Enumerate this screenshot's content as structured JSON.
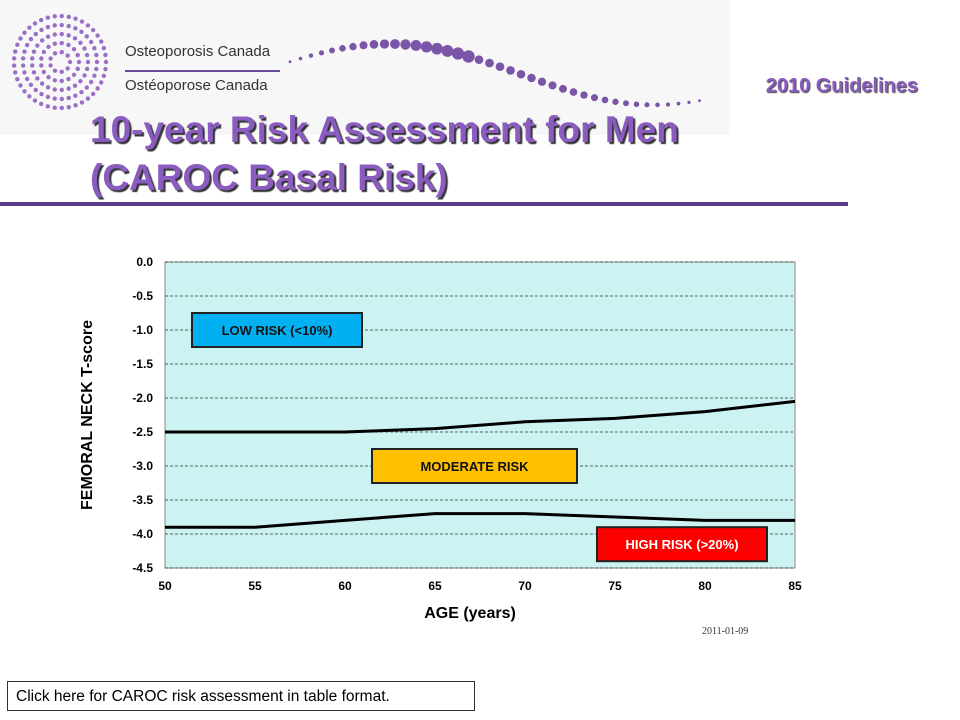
{
  "header": {
    "org_name_en": "Osteoporosis Canada",
    "org_name_fr": "Ostéoporose Canada",
    "guidelines": "2010 Guidelines",
    "title_line1": "10-year Risk Assessment for Men",
    "title_line2": "(CAROC Basal Risk)"
  },
  "link": {
    "label": "Click here for CAROC risk assessment in table format."
  },
  "chart_data": {
    "type": "line",
    "xlabel": "AGE (years)",
    "ylabel": "FEMORAL NECK T-score",
    "x": [
      50,
      55,
      60,
      65,
      70,
      75,
      80,
      85
    ],
    "xlim": [
      50,
      85
    ],
    "ylim": [
      -4.5,
      0.0
    ],
    "x_ticks": [
      "50",
      "55",
      "60",
      "65",
      "70",
      "75",
      "80",
      "85"
    ],
    "y_ticks": [
      "0.0",
      "-0.5",
      "-1.0",
      "-1.5",
      "-2.0",
      "-2.5",
      "-3.0",
      "-3.5",
      "-4.0",
      "-4.5"
    ],
    "series": [
      {
        "values": [
          -2.5,
          -2.5,
          -2.5,
          -2.45,
          -2.35,
          -2.3,
          -2.2,
          -2.05
        ]
      },
      {
        "values": [
          -3.9,
          -3.9,
          -3.8,
          -3.7,
          -3.7,
          -3.75,
          -3.8,
          -3.8
        ]
      }
    ],
    "grid": "horizontal dashed",
    "annotations": [
      {
        "label": "LOW RISK (<10%)",
        "color": "#00b0f0"
      },
      {
        "label": "MODERATE RISK",
        "color": "#ffc000"
      },
      {
        "label": "HIGH RISK (>20%)",
        "color": "#ff0000"
      }
    ],
    "date_stamp": "2011-01-09",
    "colors": {
      "plot_bg": "#ccf2f2",
      "lines": "#000000"
    }
  }
}
